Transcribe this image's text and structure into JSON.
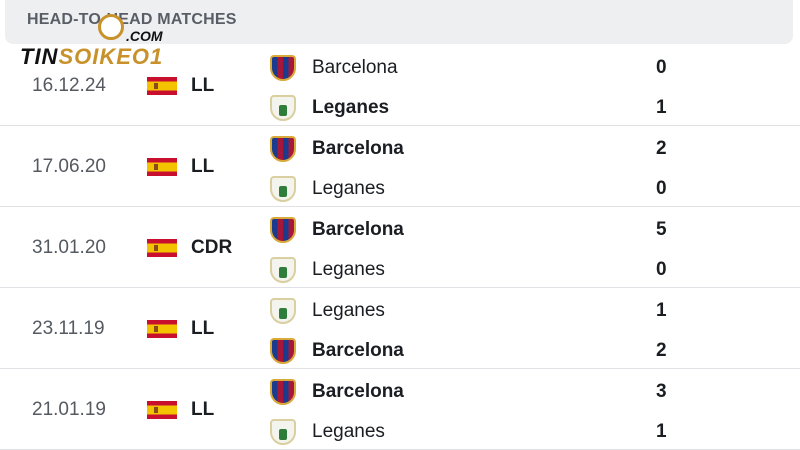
{
  "header": {
    "title": "HEAD-TO-HEAD MATCHES"
  },
  "watermark": {
    "name": "TINSOIKEO1",
    "domain": ".COM"
  },
  "matches": [
    {
      "date": "16.12.24",
      "competition": "LL",
      "home": {
        "name": "Barcelona",
        "crest": "barcelona-crest",
        "score": "0",
        "winner": false
      },
      "away": {
        "name": "Leganes",
        "crest": "leganes-crest",
        "score": "1",
        "winner": true
      }
    },
    {
      "date": "17.06.20",
      "competition": "LL",
      "home": {
        "name": "Barcelona",
        "crest": "barcelona-crest",
        "score": "2",
        "winner": true
      },
      "away": {
        "name": "Leganes",
        "crest": "leganes-crest",
        "score": "0",
        "winner": false
      }
    },
    {
      "date": "31.01.20",
      "competition": "CDR",
      "home": {
        "name": "Barcelona",
        "crest": "barcelona-crest",
        "score": "5",
        "winner": true
      },
      "away": {
        "name": "Leganes",
        "crest": "leganes-crest",
        "score": "0",
        "winner": false
      }
    },
    {
      "date": "23.11.19",
      "competition": "LL",
      "home": {
        "name": "Leganes",
        "crest": "leganes-crest",
        "score": "1",
        "winner": false
      },
      "away": {
        "name": "Barcelona",
        "crest": "barcelona-crest",
        "score": "2",
        "winner": true
      }
    },
    {
      "date": "21.01.19",
      "competition": "LL",
      "home": {
        "name": "Barcelona",
        "crest": "barcelona-crest",
        "score": "3",
        "winner": true
      },
      "away": {
        "name": "Leganes",
        "crest": "leganes-crest",
        "score": "1",
        "winner": false
      }
    }
  ]
}
